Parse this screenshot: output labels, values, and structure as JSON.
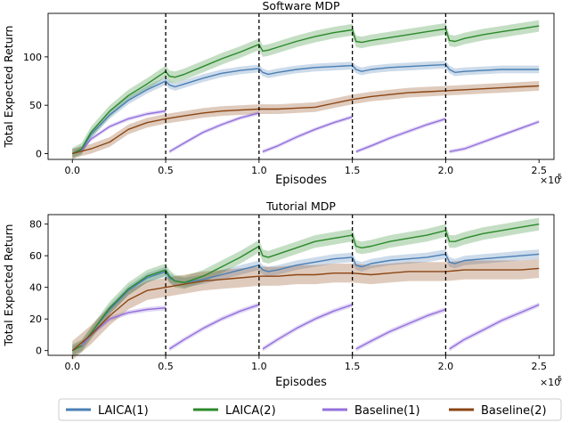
{
  "chart_data": [
    {
      "type": "line",
      "title": "Software MDP",
      "xlabel": "Episodes",
      "ylabel": "Total Expected Return",
      "x_multiplier_label": "×10",
      "x_multiplier_exp": "5",
      "xlim": [
        -0.13,
        2.58
      ],
      "ylim": [
        -6,
        145
      ],
      "xticks": [
        0.0,
        0.5,
        1.0,
        1.5,
        2.0,
        2.5
      ],
      "xtick_labels": [
        "0.0",
        "0.5",
        "1.0",
        "1.5",
        "2.0",
        "2.5"
      ],
      "yticks": [
        0,
        50,
        100
      ],
      "ytick_labels": [
        "0",
        "50",
        "100"
      ],
      "vlines": [
        0.5,
        1.0,
        1.5,
        2.0
      ],
      "series": [
        {
          "name": "LAICA(1)",
          "color": "#4a7fb5",
          "band": 4,
          "x": [
            0,
            0.05,
            0.1,
            0.2,
            0.3,
            0.4,
            0.5,
            0.52,
            0.55,
            0.6,
            0.7,
            0.8,
            0.9,
            1.0,
            1.02,
            1.05,
            1.1,
            1.2,
            1.3,
            1.4,
            1.5,
            1.52,
            1.55,
            1.6,
            1.7,
            1.8,
            1.9,
            2.0,
            2.02,
            2.05,
            2.1,
            2.2,
            2.3,
            2.4,
            2.5
          ],
          "y": [
            0,
            4,
            20,
            40,
            55,
            66,
            75,
            71,
            69,
            72,
            78,
            83,
            86,
            88,
            84,
            82,
            84,
            87,
            89,
            90,
            91,
            87,
            85,
            87,
            89,
            90,
            91,
            92,
            87,
            84,
            85,
            86,
            87,
            87,
            87
          ]
        },
        {
          "name": "LAICA(2)",
          "color": "#2a8a2a",
          "band": 6,
          "x": [
            0,
            0.05,
            0.1,
            0.2,
            0.3,
            0.4,
            0.5,
            0.52,
            0.55,
            0.6,
            0.7,
            0.8,
            0.9,
            1.0,
            1.02,
            1.05,
            1.1,
            1.2,
            1.3,
            1.4,
            1.5,
            1.52,
            1.55,
            1.6,
            1.7,
            1.8,
            1.9,
            2.0,
            2.02,
            2.05,
            2.1,
            2.2,
            2.3,
            2.4,
            2.5
          ],
          "y": [
            0,
            5,
            22,
            44,
            60,
            72,
            85,
            80,
            79,
            82,
            90,
            98,
            105,
            113,
            106,
            107,
            110,
            116,
            121,
            125,
            128,
            116,
            115,
            117,
            120,
            123,
            126,
            129,
            117,
            116,
            119,
            123,
            126,
            129,
            132
          ]
        },
        {
          "name": "Baseline(1)",
          "color": "#9370db",
          "band": 2,
          "segments": [
            {
              "x": [
                0.05,
                0.1,
                0.2,
                0.3,
                0.4,
                0.5
              ],
              "y": [
                3,
                15,
                28,
                36,
                41,
                44
              ]
            },
            {
              "x": [
                0.52,
                0.6,
                0.7,
                0.8,
                0.9,
                1.0
              ],
              "y": [
                2,
                11,
                22,
                30,
                37,
                42
              ]
            },
            {
              "x": [
                1.02,
                1.1,
                1.2,
                1.3,
                1.4,
                1.5
              ],
              "y": [
                2,
                8,
                17,
                25,
                32,
                38
              ]
            },
            {
              "x": [
                1.52,
                1.6,
                1.7,
                1.8,
                1.9,
                2.0
              ],
              "y": [
                2,
                8,
                16,
                23,
                30,
                36
              ]
            },
            {
              "x": [
                2.02,
                2.1,
                2.2,
                2.3,
                2.4,
                2.5
              ],
              "y": [
                2,
                5,
                12,
                19,
                26,
                33
              ]
            }
          ]
        },
        {
          "name": "Baseline(2)",
          "color": "#8b4513",
          "band": 5,
          "x": [
            0,
            0.1,
            0.2,
            0.3,
            0.4,
            0.5,
            0.6,
            0.7,
            0.8,
            0.9,
            1.0,
            1.1,
            1.2,
            1.3,
            1.4,
            1.5,
            1.6,
            1.7,
            1.8,
            1.9,
            2.0,
            2.1,
            2.2,
            2.3,
            2.4,
            2.5
          ],
          "y": [
            0,
            5,
            12,
            25,
            32,
            36,
            39,
            42,
            44,
            45,
            46,
            46,
            47,
            48,
            52,
            56,
            59,
            61,
            63,
            64,
            65,
            66,
            67,
            68,
            69,
            70
          ]
        }
      ]
    },
    {
      "type": "line",
      "title": "Tutorial MDP",
      "xlabel": "Episodes",
      "ylabel": "Total Expected Return",
      "x_multiplier_label": "×10",
      "x_multiplier_exp": "5",
      "xlim": [
        -0.13,
        2.58
      ],
      "ylim": [
        -3,
        86
      ],
      "xticks": [
        0.0,
        0.5,
        1.0,
        1.5,
        2.0,
        2.5
      ],
      "xtick_labels": [
        "0.0",
        "0.5",
        "1.0",
        "1.5",
        "2.0",
        "2.5"
      ],
      "yticks": [
        0,
        20,
        40,
        60,
        80
      ],
      "ytick_labels": [
        "0",
        "20",
        "40",
        "60",
        "80"
      ],
      "vlines": [
        0.5,
        1.0,
        1.5,
        2.0
      ],
      "series": [
        {
          "name": "LAICA(1)",
          "color": "#4a7fb5",
          "band": 3,
          "x": [
            0,
            0.05,
            0.1,
            0.2,
            0.3,
            0.4,
            0.5,
            0.52,
            0.55,
            0.6,
            0.7,
            0.8,
            0.9,
            1.0,
            1.02,
            1.05,
            1.1,
            1.2,
            1.3,
            1.4,
            1.5,
            1.52,
            1.55,
            1.6,
            1.7,
            1.8,
            1.9,
            2.0,
            2.02,
            2.05,
            2.1,
            2.2,
            2.3,
            2.4,
            2.5
          ],
          "y": [
            0,
            3,
            11,
            26,
            38,
            46,
            50,
            46,
            44,
            43,
            45,
            48,
            51,
            54,
            51,
            50,
            51,
            54,
            56,
            58,
            59,
            54,
            53,
            55,
            57,
            58,
            59,
            61,
            56,
            55,
            57,
            58,
            59,
            60,
            61
          ]
        },
        {
          "name": "LAICA(2)",
          "color": "#2a8a2a",
          "band": 4,
          "x": [
            0,
            0.05,
            0.1,
            0.2,
            0.3,
            0.4,
            0.5,
            0.52,
            0.55,
            0.6,
            0.7,
            0.8,
            0.9,
            1.0,
            1.02,
            1.05,
            1.1,
            1.2,
            1.3,
            1.4,
            1.5,
            1.52,
            1.55,
            1.6,
            1.7,
            1.8,
            1.9,
            2.0,
            2.02,
            2.05,
            2.1,
            2.2,
            2.3,
            2.4,
            2.5
          ],
          "y": [
            0,
            3,
            11,
            27,
            39,
            47,
            51,
            47,
            44,
            43,
            47,
            53,
            59,
            66,
            60,
            59,
            61,
            65,
            69,
            71,
            73,
            66,
            65,
            66,
            69,
            71,
            73,
            76,
            69,
            69,
            71,
            74,
            76,
            78,
            80
          ]
        },
        {
          "name": "Baseline(1)",
          "color": "#9370db",
          "band": 1.5,
          "segments": [
            {
              "x": [
                0.05,
                0.1,
                0.2,
                0.3,
                0.4,
                0.5
              ],
              "y": [
                3,
                10,
                20,
                24,
                26,
                27
              ]
            },
            {
              "x": [
                0.52,
                0.6,
                0.7,
                0.8,
                0.9,
                1.0
              ],
              "y": [
                1,
                7,
                14,
                20,
                25,
                29
              ]
            },
            {
              "x": [
                1.02,
                1.1,
                1.2,
                1.3,
                1.4,
                1.5
              ],
              "y": [
                1,
                7,
                14,
                20,
                25,
                29
              ]
            },
            {
              "x": [
                1.52,
                1.6,
                1.7,
                1.8,
                1.9,
                2.0
              ],
              "y": [
                1,
                6,
                12,
                17,
                22,
                26
              ]
            },
            {
              "x": [
                2.02,
                2.1,
                2.2,
                2.3,
                2.4,
                2.5
              ],
              "y": [
                1,
                7,
                13,
                19,
                24,
                29
              ]
            }
          ]
        },
        {
          "name": "Baseline(2)",
          "color": "#8b4513",
          "band": 6,
          "x": [
            0,
            0.1,
            0.2,
            0.3,
            0.4,
            0.5,
            0.6,
            0.7,
            0.8,
            0.9,
            1.0,
            1.1,
            1.2,
            1.3,
            1.4,
            1.5,
            1.6,
            1.7,
            1.8,
            1.9,
            2.0,
            2.1,
            2.2,
            2.3,
            2.4,
            2.5
          ],
          "y": [
            0,
            10,
            22,
            32,
            38,
            40,
            42,
            44,
            45,
            46,
            47,
            47,
            48,
            48,
            49,
            49,
            48,
            49,
            50,
            50,
            50,
            51,
            51,
            51,
            51,
            52
          ]
        }
      ]
    }
  ],
  "legend": {
    "position": "bottom",
    "entries": [
      {
        "label": "LAICA(1)",
        "color": "#4a7fb5"
      },
      {
        "label": "LAICA(2)",
        "color": "#2a8a2a"
      },
      {
        "label": "Baseline(1)",
        "color": "#9370db"
      },
      {
        "label": "Baseline(2)",
        "color": "#8b4513"
      }
    ]
  }
}
